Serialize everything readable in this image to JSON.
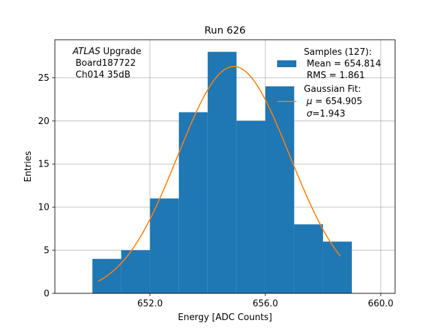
{
  "chart_data": {
    "type": "bar",
    "title": "Run 626",
    "xlabel": "Energy [ADC Counts]",
    "ylabel": "Entries",
    "xlim": [
      648.7,
      660.5
    ],
    "ylim": [
      0,
      29.4
    ],
    "grid": true,
    "xticks": [
      652.0,
      656.0,
      660.0
    ],
    "xtick_labels": [
      "652.0",
      "656.0",
      "660.0"
    ],
    "yticks": [
      0,
      5,
      10,
      15,
      20,
      25
    ],
    "ytick_labels": [
      "0",
      "5",
      "10",
      "15",
      "20",
      "25"
    ],
    "bin_edges": [
      650,
      651,
      652,
      653,
      654,
      655,
      656,
      657,
      658,
      659
    ],
    "counts": [
      4,
      5,
      11,
      21,
      28,
      20,
      24,
      8,
      6
    ],
    "hist_color": "#1f77b4",
    "fit": {
      "name": "Gaussian Fit",
      "mu": 654.905,
      "sigma": 1.943,
      "amplitude": 26.3,
      "x_range": [
        650.2,
        658.6
      ],
      "color": "#ff7f0e"
    },
    "annotation": {
      "italic": "ATLAS",
      "line1_rest": " Upgrade",
      "line2": " Board187722",
      "line3": " Ch014 35dB"
    },
    "legend": {
      "position": "top-right",
      "samples_title": "Samples (127):",
      "samples_mean": " Mean = 654.814",
      "samples_rms": " RMS = 1.861",
      "fit_title": "Gaussian Fit:",
      "fit_mu_symbol": "μ",
      "fit_mu_value": " = 654.905",
      "fit_sigma_symbol": "σ",
      "fit_sigma_value": "=1.943"
    }
  }
}
